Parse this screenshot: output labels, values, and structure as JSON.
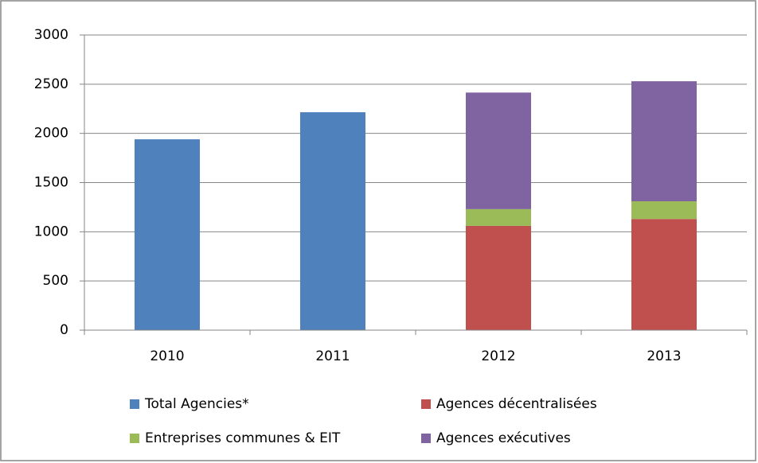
{
  "chart_data": {
    "type": "stacked_bar",
    "categories": [
      "2010",
      "2011",
      "2012",
      "2013"
    ],
    "series": [
      {
        "name": "Total Agencies*",
        "color": "#4f81bd",
        "values": [
          1940,
          2215,
          null,
          null
        ]
      },
      {
        "name": "Agences décentralisées",
        "color": "#c0504d",
        "values": [
          null,
          null,
          1060,
          1130
        ]
      },
      {
        "name": "Entreprises communes & EIT",
        "color": "#9bbb59",
        "values": [
          null,
          null,
          170,
          180
        ]
      },
      {
        "name": "Agences exécutives",
        "color": "#8064a2",
        "values": [
          null,
          null,
          1185,
          1220
        ]
      }
    ],
    "ylim": [
      0,
      3000
    ],
    "yticks": [
      0,
      500,
      1000,
      1500,
      2000,
      2500,
      3000
    ],
    "grid": true,
    "legend": "bottom"
  }
}
